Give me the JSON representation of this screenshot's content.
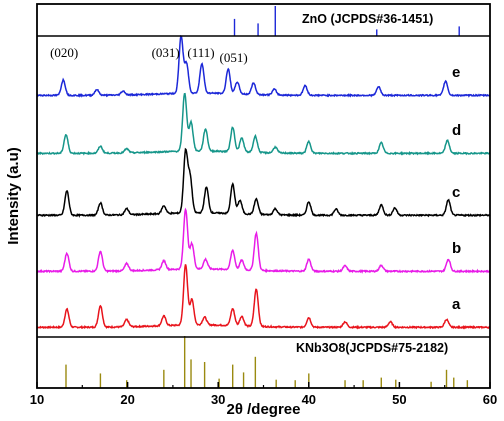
{
  "chart_data": {
    "type": "line",
    "xlabel": "2θ /degree",
    "ylabel": "Intensity (a.u)",
    "xlim": [
      10,
      60
    ],
    "xticks": [
      "10",
      "20",
      "30",
      "40",
      "50",
      "60"
    ],
    "grid": false,
    "series": [
      {
        "name": "a",
        "color": "#e8141c",
        "peaks": [
          [
            13.3,
            0.3
          ],
          [
            17.0,
            0.36
          ],
          [
            19.9,
            0.12
          ],
          [
            24.0,
            0.16
          ],
          [
            26.4,
            1.0
          ],
          [
            27.1,
            0.42
          ],
          [
            28.5,
            0.13
          ],
          [
            31.6,
            0.28
          ],
          [
            32.6,
            0.16
          ],
          [
            34.2,
            0.62
          ],
          [
            40.0,
            0.16
          ],
          [
            44.0,
            0.09
          ],
          [
            49.0,
            0.09
          ],
          [
            55.2,
            0.13
          ]
        ]
      },
      {
        "name": "b",
        "color": "#e81ce8",
        "peaks": [
          [
            13.3,
            0.3
          ],
          [
            17.0,
            0.33
          ],
          [
            19.9,
            0.12
          ],
          [
            24.0,
            0.15
          ],
          [
            26.4,
            1.0
          ],
          [
            27.1,
            0.42
          ],
          [
            28.6,
            0.16
          ],
          [
            31.6,
            0.32
          ],
          [
            32.6,
            0.16
          ],
          [
            34.2,
            0.62
          ],
          [
            40.0,
            0.2
          ],
          [
            44.0,
            0.09
          ],
          [
            48.0,
            0.1
          ],
          [
            55.4,
            0.2
          ]
        ]
      },
      {
        "name": "c",
        "color": "#000000",
        "peaks": [
          [
            13.3,
            0.4
          ],
          [
            17.0,
            0.2
          ],
          [
            19.9,
            0.1
          ],
          [
            24.0,
            0.13
          ],
          [
            26.4,
            1.0
          ],
          [
            26.9,
            0.58
          ],
          [
            28.7,
            0.42
          ],
          [
            31.6,
            0.48
          ],
          [
            32.4,
            0.22
          ],
          [
            34.2,
            0.25
          ],
          [
            36.3,
            0.1
          ],
          [
            40.0,
            0.22
          ],
          [
            43.0,
            0.1
          ],
          [
            48.0,
            0.17
          ],
          [
            49.5,
            0.12
          ],
          [
            55.4,
            0.25
          ]
        ]
      },
      {
        "name": "d",
        "color": "#16968a",
        "peaks": [
          [
            13.2,
            0.32
          ],
          [
            17.0,
            0.12
          ],
          [
            19.9,
            0.07
          ],
          [
            26.3,
            1.0
          ],
          [
            27.0,
            0.5
          ],
          [
            28.6,
            0.38
          ],
          [
            31.6,
            0.42
          ],
          [
            32.6,
            0.24
          ],
          [
            34.1,
            0.28
          ],
          [
            36.3,
            0.1
          ],
          [
            40.0,
            0.2
          ],
          [
            48.0,
            0.18
          ],
          [
            55.3,
            0.22
          ]
        ]
      },
      {
        "name": "e",
        "color": "#1c28d8",
        "peaks": [
          [
            12.9,
            0.27
          ],
          [
            16.6,
            0.1
          ],
          [
            19.5,
            0.07
          ],
          [
            25.9,
            1.0
          ],
          [
            26.5,
            0.52
          ],
          [
            28.2,
            0.52
          ],
          [
            31.1,
            0.43
          ],
          [
            32.1,
            0.21
          ],
          [
            33.9,
            0.2
          ],
          [
            36.2,
            0.1
          ],
          [
            39.6,
            0.17
          ],
          [
            47.7,
            0.15
          ],
          [
            55.1,
            0.25
          ]
        ]
      }
    ],
    "peak_labels": [
      {
        "text": "(020)",
        "x": 13.0
      },
      {
        "text": "(031)",
        "x": 24.2
      },
      {
        "text": "(111)",
        "x": 28.1
      },
      {
        "text": "(051)",
        "x": 31.7
      }
    ],
    "references": [
      {
        "name": "ZnO (JCPDS#36-1451)",
        "color": "#1c28d8",
        "sticks": [
          [
            31.8,
            0.57
          ],
          [
            34.4,
            0.42
          ],
          [
            36.3,
            1.0
          ],
          [
            47.5,
            0.22
          ],
          [
            56.6,
            0.32
          ]
        ]
      },
      {
        "name": "KNb3O8(JCPDS#75-2182)",
        "color": "#9a8a10",
        "sticks": [
          [
            13.2,
            0.45
          ],
          [
            17.0,
            0.28
          ],
          [
            19.9,
            0.15
          ],
          [
            24.0,
            0.35
          ],
          [
            26.3,
            1.0
          ],
          [
            27.0,
            0.55
          ],
          [
            28.5,
            0.5
          ],
          [
            30.1,
            0.18
          ],
          [
            31.6,
            0.45
          ],
          [
            32.8,
            0.3
          ],
          [
            34.1,
            0.6
          ],
          [
            36.4,
            0.16
          ],
          [
            38.5,
            0.15
          ],
          [
            40.0,
            0.28
          ],
          [
            44.0,
            0.15
          ],
          [
            46.0,
            0.15
          ],
          [
            48.0,
            0.2
          ],
          [
            49.6,
            0.16
          ],
          [
            53.5,
            0.12
          ],
          [
            55.2,
            0.35
          ],
          [
            56.0,
            0.2
          ],
          [
            57.5,
            0.15
          ]
        ]
      }
    ]
  }
}
